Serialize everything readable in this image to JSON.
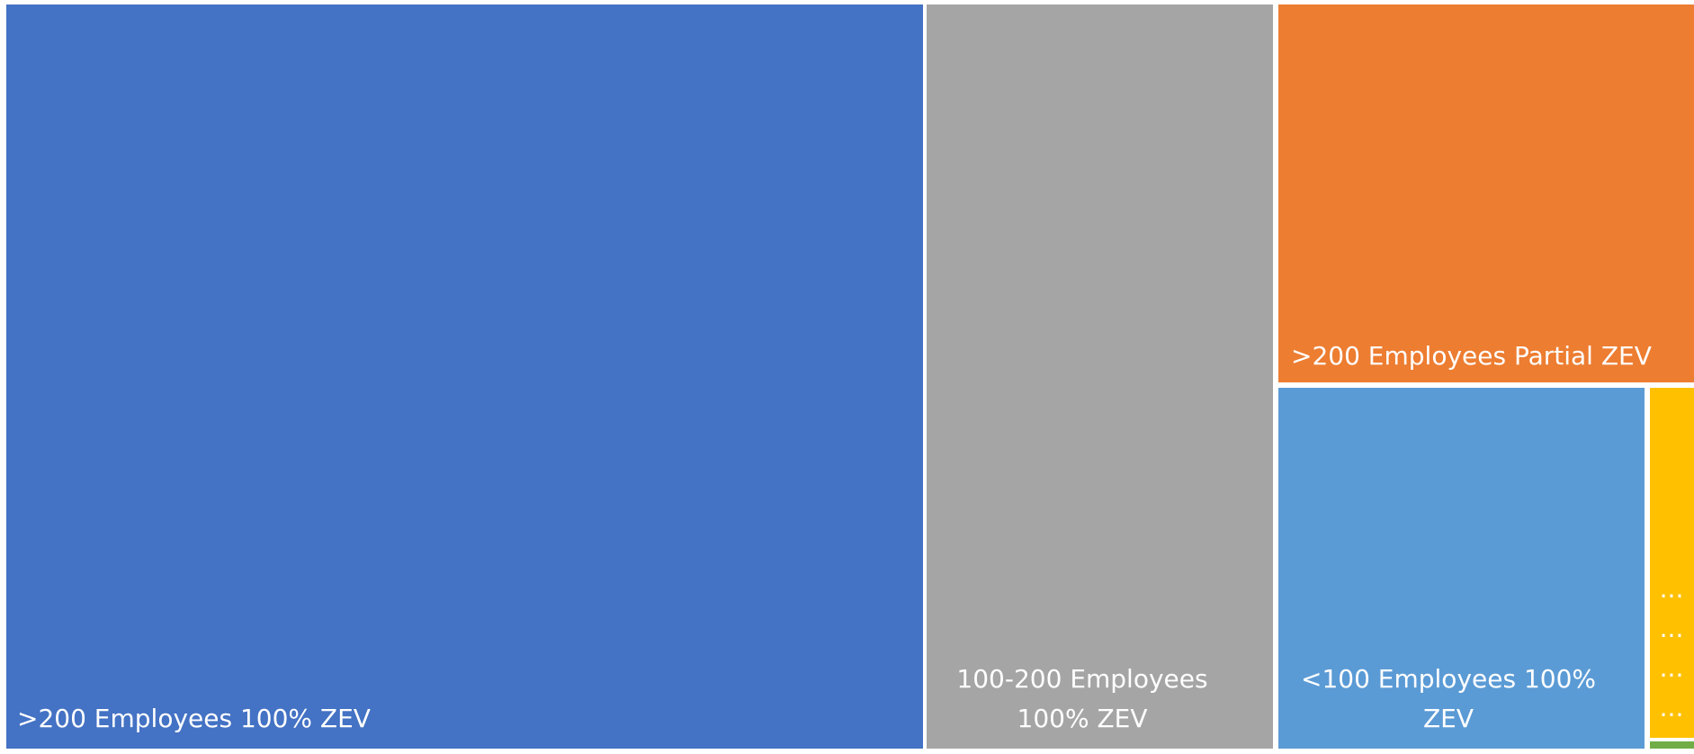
{
  "chart_data": {
    "type": "treemap",
    "title": "",
    "tiles": [
      {
        "label": ">200 Employees 100% ZEV",
        "label_lines": [
          ">200 Employees 100% ZEV"
        ],
        "color": "#4472C4"
      },
      {
        "label": "100-200  Employees 100% ZEV",
        "label_lines": [
          "100-200  Employees",
          "100% ZEV"
        ],
        "color": "#A5A5A5"
      },
      {
        "label": ">200 Employees Partial ZEV",
        "label_lines": [
          ">200 Employees Partial ZEV"
        ],
        "color": "#ED7D31"
      },
      {
        "label": "<100 Employees 100% ZEV",
        "label_lines": [
          "<100 Employees 100%",
          "ZEV"
        ],
        "color": "#5B9BD5"
      },
      {
        "label": "...",
        "label_lines": [
          "...",
          "...",
          "...",
          "..."
        ],
        "color": "#FFC000"
      },
      {
        "label": "",
        "label_lines": [],
        "color": "#70AD47"
      }
    ]
  }
}
